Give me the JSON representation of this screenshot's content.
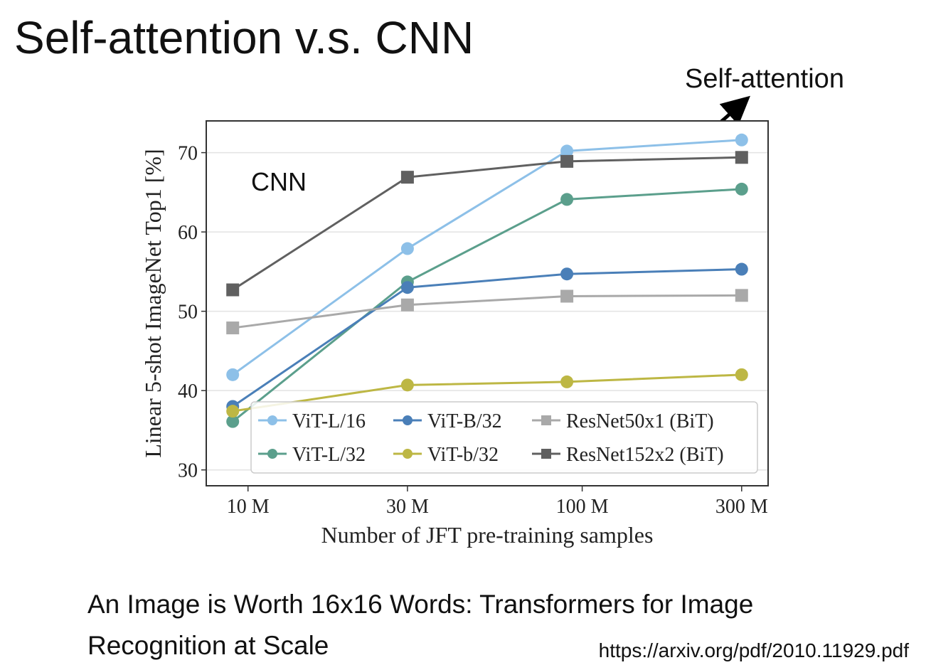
{
  "slide": {
    "title": "Self-attention v.s. CNN",
    "caption": [
      "An Image is Worth 16x16 Words: Transformers for Image",
      "Recognition at Scale"
    ],
    "url": "https://arxiv.org/pdf/2010.11929.pdf"
  },
  "chart_data": {
    "type": "line",
    "xlabel": "Number of JFT pre-training samples",
    "ylabel": "Linear 5-shot ImageNet Top1 [%]",
    "x": [
      9,
      30,
      90,
      300
    ],
    "xscale": "log",
    "xlim": [
      7.5,
      360
    ],
    "xticks": [
      {
        "value": 10,
        "label": "10 M"
      },
      {
        "value": 30,
        "label": "30 M"
      },
      {
        "value": 100,
        "label": "100 M"
      },
      {
        "value": 300,
        "label": "300 M"
      }
    ],
    "ylim": [
      28,
      74
    ],
    "yticks": [
      30,
      40,
      50,
      60,
      70
    ],
    "grid": true,
    "legend": "lower right",
    "series": [
      {
        "name": "ViT-L/16",
        "color": "#8dc0e8",
        "marker": "circle",
        "values": [
          42.0,
          57.9,
          70.2,
          71.6
        ]
      },
      {
        "name": "ViT-L/32",
        "color": "#5b9f8c",
        "marker": "circle",
        "values": [
          36.1,
          53.7,
          64.1,
          65.4
        ]
      },
      {
        "name": "ViT-B/32",
        "color": "#4a7fb8",
        "marker": "circle",
        "values": [
          38.0,
          53.0,
          54.7,
          55.3
        ]
      },
      {
        "name": "ViT-b/32",
        "color": "#bdb744",
        "marker": "circle",
        "values": [
          37.4,
          40.7,
          41.1,
          42.0
        ]
      },
      {
        "name": "ResNet50x1 (BiT)",
        "color": "#a9a9a9",
        "marker": "square",
        "values": [
          47.9,
          50.8,
          51.9,
          52.0
        ]
      },
      {
        "name": "ResNet152x2 (BiT)",
        "color": "#606060",
        "marker": "square",
        "values": [
          52.7,
          66.9,
          68.9,
          69.4
        ]
      }
    ],
    "annotations": [
      "Self-attention",
      "CNN"
    ]
  }
}
